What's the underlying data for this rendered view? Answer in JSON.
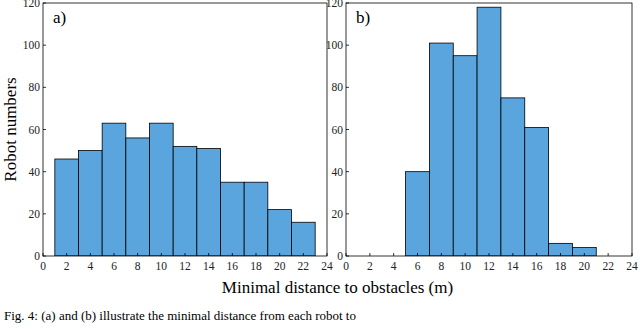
{
  "chart_data": [
    {
      "type": "histogram",
      "title": "a)",
      "y_label": "Robot numbers",
      "bins": [
        1,
        3,
        5,
        7,
        9,
        11,
        13,
        15,
        17,
        19,
        21,
        23
      ],
      "counts": [
        46,
        50,
        63,
        56,
        63,
        52,
        51,
        35,
        35,
        22,
        16
      ],
      "color": "#5aa5dd",
      "xlim": [
        0,
        24
      ],
      "xticks": [
        0,
        2,
        4,
        6,
        8,
        10,
        12,
        14,
        16,
        18,
        20,
        22,
        24
      ],
      "ylim": [
        0,
        120
      ],
      "yticks": [
        0,
        20,
        40,
        60,
        80,
        100,
        120
      ],
      "grid": false
    },
    {
      "type": "histogram",
      "title": "b)",
      "bins": [
        5,
        7,
        9,
        11,
        13,
        15,
        17,
        19,
        21
      ],
      "counts": [
        40,
        101,
        95,
        118,
        75,
        61,
        6,
        4
      ],
      "color": "#5aa5dd",
      "xlim": [
        0,
        24
      ],
      "xticks": [
        0,
        2,
        4,
        6,
        8,
        10,
        12,
        14,
        16,
        18,
        20,
        22,
        24
      ],
      "ylim": [
        0,
        120
      ],
      "yticks": [
        0,
        20,
        40,
        60,
        80,
        100,
        120
      ],
      "grid": false
    }
  ],
  "x_label": "Minimal distance to obstacles (m)",
  "caption": "Fig. 4: (a) and (b) illustrate the minimal distance from each robot to"
}
